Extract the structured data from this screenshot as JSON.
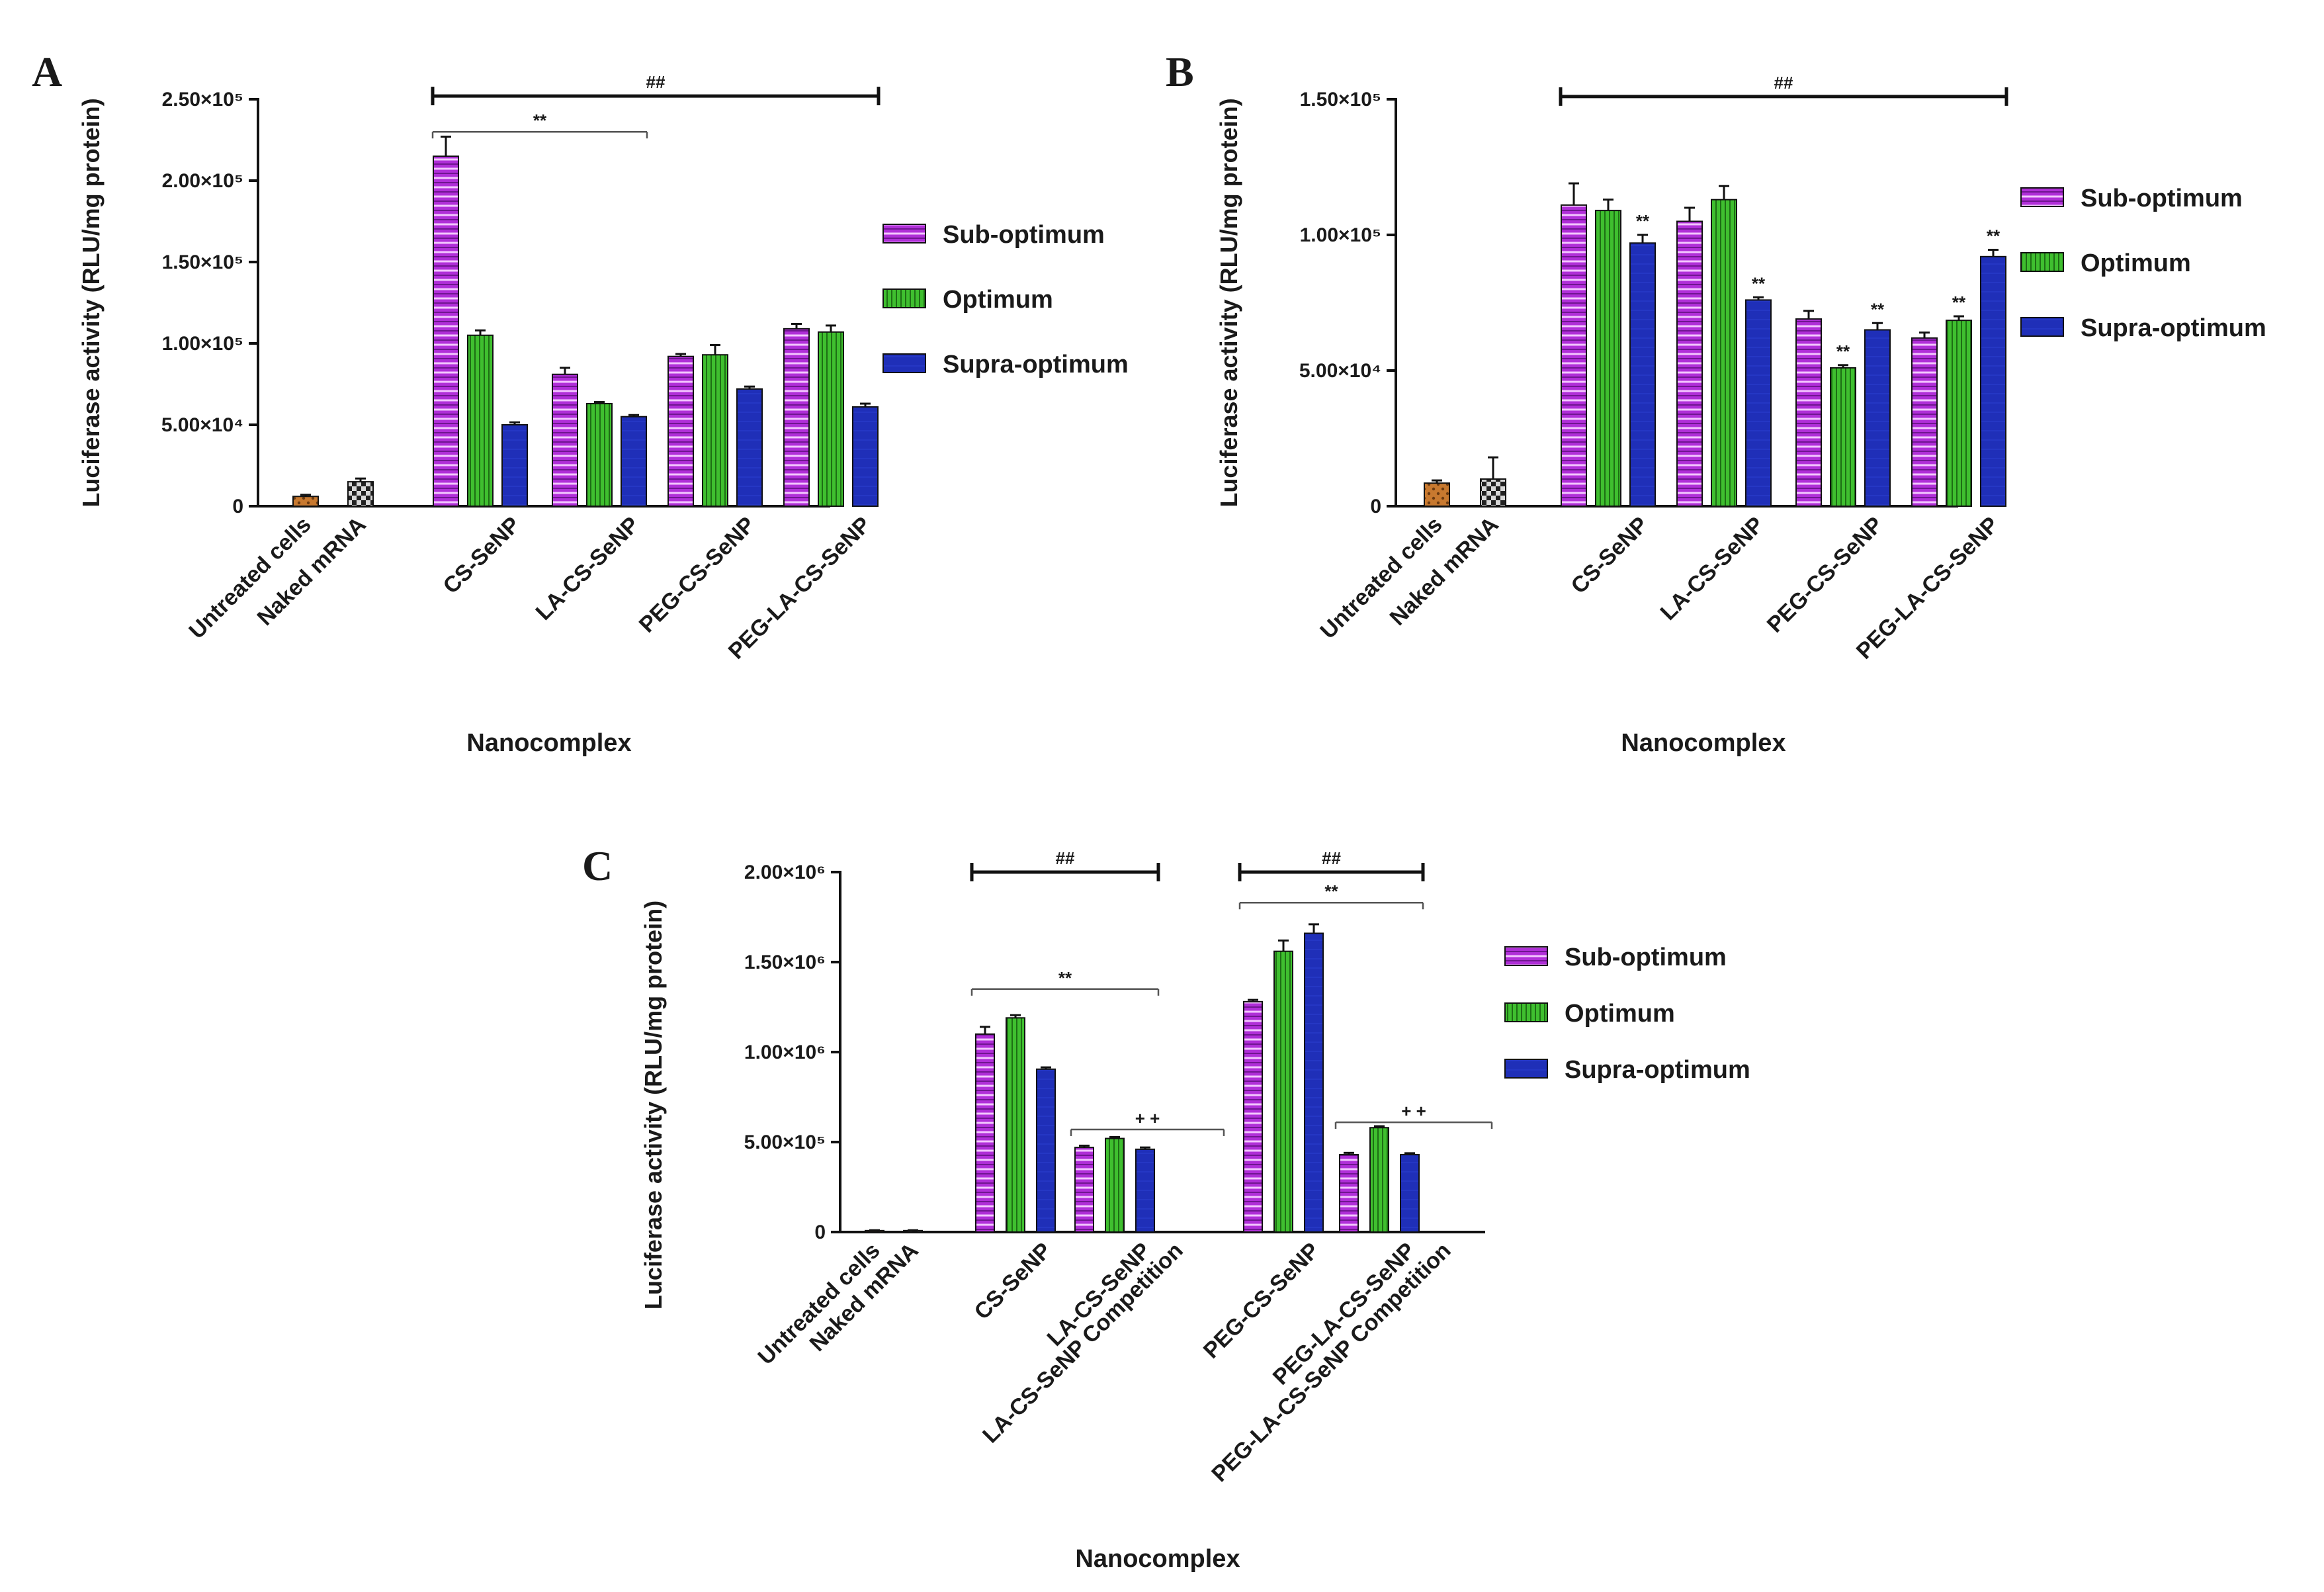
{
  "legend": [
    "Sub-optimum",
    "Optimum",
    "Supra-optimum"
  ],
  "colors": {
    "sub": "#b02fd8",
    "opt": "#3fbf2f",
    "supra": "#1f2fb8",
    "untreated": "#c8792f",
    "naked": "#808080"
  },
  "chart_data": [
    {
      "panel": "A",
      "type": "bar",
      "ylabel": "Luciferase activity (RLU/mg protein)",
      "xlabel": "Nanocomplex",
      "ylim": [
        0,
        250000
      ],
      "yticks": [
        {
          "value": 0,
          "label": "0"
        },
        {
          "value": 50000,
          "label": "5.00×10⁴"
        },
        {
          "value": 100000,
          "label": "1.00×10⁵"
        },
        {
          "value": 150000,
          "label": "1.50×10⁵"
        },
        {
          "value": 200000,
          "label": "2.00×10⁵"
        },
        {
          "value": 250000,
          "label": "2.50×10⁵"
        }
      ],
      "groups": [
        {
          "label": "Untreated cells",
          "bars": [
            {
              "series": "untreated",
              "value": 6000,
              "err": 1000
            }
          ]
        },
        {
          "label": "Naked mRNA",
          "bars": [
            {
              "series": "naked",
              "value": 15000,
              "err": 2000
            }
          ]
        },
        {
          "label": "CS-SeNP",
          "bars": [
            {
              "series": "sub",
              "value": 215000,
              "err": 12000
            },
            {
              "series": "opt",
              "value": 105000,
              "err": 3000
            },
            {
              "series": "supra",
              "value": 50000,
              "err": 1500
            }
          ]
        },
        {
          "label": "LA-CS-SeNP",
          "bars": [
            {
              "series": "sub",
              "value": 81000,
              "err": 4000
            },
            {
              "series": "opt",
              "value": 63000,
              "err": 1000
            },
            {
              "series": "supra",
              "value": 55000,
              "err": 1000
            }
          ]
        },
        {
          "label": "PEG-CS-SeNP",
          "bars": [
            {
              "series": "sub",
              "value": 92000,
              "err": 1500
            },
            {
              "series": "opt",
              "value": 93000,
              "err": 6000
            },
            {
              "series": "supra",
              "value": 72000,
              "err": 1500
            }
          ]
        },
        {
          "label": "PEG-LA-CS-SeNP",
          "bars": [
            {
              "series": "sub",
              "value": 109000,
              "err": 3000
            },
            {
              "series": "opt",
              "value": 107000,
              "err": 4000
            },
            {
              "series": "supra",
              "value": 61000,
              "err": 2000
            }
          ]
        }
      ],
      "brackets": [
        {
          "from": 2,
          "to": 5,
          "label": "##",
          "style": "major",
          "value": 252000
        },
        {
          "from": 2,
          "to": 3,
          "label": "**",
          "style": "minor",
          "value": 230000
        }
      ],
      "stars": []
    },
    {
      "panel": "B",
      "type": "bar",
      "ylabel": "Luciferase activity (RLU/mg protein)",
      "xlabel": "Nanocomplex",
      "ylim": [
        0,
        150000
      ],
      "yticks": [
        {
          "value": 0,
          "label": "0"
        },
        {
          "value": 50000,
          "label": "5.00×10⁴"
        },
        {
          "value": 100000,
          "label": "1.00×10⁵"
        },
        {
          "value": 150000,
          "label": "1.50×10⁵"
        }
      ],
      "groups": [
        {
          "label": "Untreated cells",
          "bars": [
            {
              "series": "untreated",
              "value": 8500,
              "err": 1000
            }
          ]
        },
        {
          "label": "Naked mRNA",
          "bars": [
            {
              "series": "naked",
              "value": 10000,
              "err": 8000
            }
          ]
        },
        {
          "label": "CS-SeNP",
          "bars": [
            {
              "series": "sub",
              "value": 111000,
              "err": 8000
            },
            {
              "series": "opt",
              "value": 109000,
              "err": 4000
            },
            {
              "series": "supra",
              "value": 97000,
              "err": 3000
            }
          ]
        },
        {
          "label": "LA-CS-SeNP",
          "bars": [
            {
              "series": "sub",
              "value": 105000,
              "err": 5000
            },
            {
              "series": "opt",
              "value": 113000,
              "err": 5000
            },
            {
              "series": "supra",
              "value": 76000,
              "err": 1000
            }
          ]
        },
        {
          "label": "PEG-CS-SeNP",
          "bars": [
            {
              "series": "sub",
              "value": 69000,
              "err": 3000
            },
            {
              "series": "opt",
              "value": 51000,
              "err": 1000
            },
            {
              "series": "supra",
              "value": 65000,
              "err": 2500
            }
          ]
        },
        {
          "label": "PEG-LA-CS-SeNP",
          "bars": [
            {
              "series": "sub",
              "value": 62000,
              "err": 2000
            },
            {
              "series": "opt",
              "value": 68500,
              "err": 1500
            },
            {
              "series": "supra",
              "value": 92000,
              "err": 2500
            }
          ]
        }
      ],
      "brackets": [
        {
          "from": 2,
          "to": 5,
          "label": "##",
          "style": "major",
          "value": 151000
        }
      ],
      "stars": [
        {
          "group": 2,
          "bar": 2,
          "label": "**"
        },
        {
          "group": 3,
          "bar": 2,
          "label": "**"
        },
        {
          "group": 4,
          "bar": 1,
          "label": "**"
        },
        {
          "group": 4,
          "bar": 2,
          "label": "**"
        },
        {
          "group": 5,
          "bar": 1,
          "label": "**"
        },
        {
          "group": 5,
          "bar": 2,
          "label": "**"
        }
      ]
    },
    {
      "panel": "C",
      "type": "bar",
      "ylabel": "Luciferase activity (RLU/mg protein)",
      "xlabel": "Nanocomplex",
      "ylim": [
        0,
        2000000
      ],
      "yticks": [
        {
          "value": 0,
          "label": "0"
        },
        {
          "value": 500000,
          "label": "5.00×10⁵"
        },
        {
          "value": 1000000,
          "label": "1.00×10⁶"
        },
        {
          "value": 1500000,
          "label": "1.50×10⁶"
        },
        {
          "value": 2000000,
          "label": "2.00×10⁶"
        }
      ],
      "groups": [
        {
          "label": "Untreated cells",
          "bars": [
            {
              "series": "untreated",
              "value": 8000,
              "err": 2000
            }
          ]
        },
        {
          "label": "Naked mRNA",
          "bars": [
            {
              "series": "naked",
              "value": 8000,
              "err": 2000
            }
          ]
        },
        {
          "label": "CS-SeNP",
          "bars": [
            {
              "series": "sub",
              "value": 1100000,
              "err": 40000
            },
            {
              "series": "opt",
              "value": 1190000,
              "err": 15000
            },
            {
              "series": "supra",
              "value": 905000,
              "err": 10000
            }
          ]
        },
        {
          "label": "LA-CS-SeNP",
          "bars": [
            {
              "series": "sub",
              "value": 470000,
              "err": 10000
            },
            {
              "series": "opt",
              "value": 520000,
              "err": 8000
            },
            {
              "series": "supra",
              "value": 460000,
              "err": 10000
            }
          ]
        },
        {
          "label": "LA-CS-SeNP Competition",
          "bars": []
        },
        {
          "label": "PEG-CS-SeNP",
          "bars": [
            {
              "series": "sub",
              "value": 1280000,
              "err": 10000
            },
            {
              "series": "opt",
              "value": 1560000,
              "err": 60000
            },
            {
              "series": "supra",
              "value": 1660000,
              "err": 50000
            }
          ]
        },
        {
          "label": "PEG-LA-CS-SeNP",
          "bars": [
            {
              "series": "sub",
              "value": 430000,
              "err": 10000
            },
            {
              "series": "opt",
              "value": 580000,
              "err": 8000
            },
            {
              "series": "supra",
              "value": 430000,
              "err": 8000
            }
          ]
        },
        {
          "label": "PEG-LA-CS-SeNP Competition",
          "bars": []
        }
      ],
      "brackets": [
        {
          "from": 2,
          "to": 3,
          "label": "##",
          "style": "major",
          "value": 2000000
        },
        {
          "from": 5,
          "to": 6,
          "label": "##",
          "style": "major",
          "value": 2000000
        },
        {
          "from": 5,
          "to": 6,
          "label": "**",
          "style": "minor",
          "value": 1830000
        },
        {
          "from": 2,
          "to": 3,
          "label": "**",
          "style": "minor",
          "value": 1350000
        },
        {
          "from": 3,
          "to": 4,
          "label": "+ +",
          "style": "minor",
          "value": 570000
        },
        {
          "from": 6,
          "to": 7,
          "label": "+ +",
          "style": "minor",
          "value": 610000
        }
      ],
      "stars": []
    }
  ]
}
